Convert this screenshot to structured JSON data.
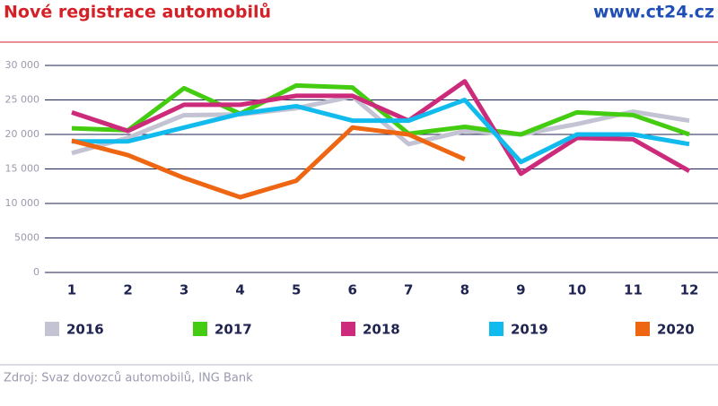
{
  "header": {
    "title": "Nové registrace automobilů",
    "site": "www.ct24.cz"
  },
  "chart_data": {
    "type": "line",
    "categories": [
      "1",
      "2",
      "3",
      "4",
      "5",
      "6",
      "7",
      "8",
      "9",
      "10",
      "11",
      "12"
    ],
    "ylim": [
      0,
      30000
    ],
    "yticks": [
      0,
      5000,
      {
        "value": 10000,
        "label": "10 000"
      },
      {
        "value": 15000,
        "label": "15 000"
      },
      {
        "value": 20000,
        "label": "20 000"
      },
      {
        "value": 25000,
        "label": "25 000"
      },
      {
        "value": 30000,
        "label": "30 000"
      }
    ],
    "grid": true,
    "series": [
      {
        "name": "2016",
        "color": "#c3c3d3",
        "values": [
          17300,
          19500,
          22800,
          22900,
          23800,
          25500,
          18600,
          20500,
          20000,
          21500,
          23300,
          22000
        ]
      },
      {
        "name": "2017",
        "color": "#44cc11",
        "values": [
          20900,
          20600,
          26700,
          23000,
          27100,
          26800,
          20100,
          21100,
          20000,
          23200,
          22800,
          20000
        ]
      },
      {
        "name": "2018",
        "color": "#cc2a7a",
        "values": [
          23200,
          20500,
          24300,
          24300,
          25600,
          25600,
          22000,
          27700,
          14300,
          19500,
          19300,
          14700
        ]
      },
      {
        "name": "2019",
        "color": "#11bbee",
        "values": [
          19000,
          19000,
          21000,
          23000,
          24100,
          22000,
          22000,
          25000,
          16000,
          20000,
          20000,
          18600
        ]
      },
      {
        "name": "2020",
        "color": "#ee6611",
        "values": [
          19100,
          17000,
          13700,
          10900,
          13300,
          21000,
          20000,
          16400,
          null,
          null,
          null,
          null
        ]
      }
    ]
  },
  "footer": {
    "source": "Zdroj: Svaz dovozců automobilů, ING Bank"
  }
}
